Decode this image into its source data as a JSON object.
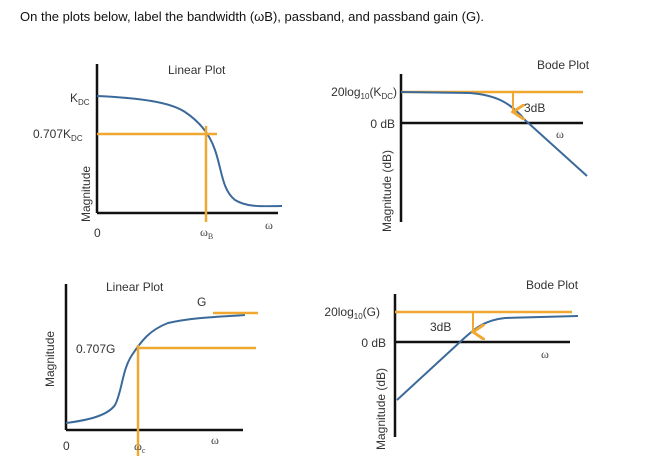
{
  "instruction": "On the plots below, label the bandwidth (ωB), passband, and passband gain (G).",
  "colors": {
    "axis": "#111111",
    "curve": "#3b6a9a",
    "marker": "#f0a830",
    "text": "#333333"
  },
  "plots": [
    {
      "title": "Linear Plot",
      "ylabel": "Magnitude",
      "origin": "0",
      "x_label": "ω",
      "level_label_main": "K",
      "level_label_sub": "DC",
      "marker_label_main": "0.707K",
      "marker_label_sub": "DC",
      "freq_main": "ω",
      "freq_sub": "B",
      "type": "low-pass linear"
    },
    {
      "title": "Bode Plot",
      "ylabel": "Magnitude (dB)",
      "x_label": "ω",
      "level_a": "20log",
      "level_sub": "10",
      "level_b": "(K",
      "level_sub2": "DC",
      "level_c": ")",
      "zero_label": "0 dB",
      "drop_label": "3dB",
      "type": "low-pass bode"
    },
    {
      "title": "Linear Plot",
      "ylabel": "Magnitude",
      "origin": "0",
      "x_label": "ω",
      "level_label": "G",
      "marker_label": "0.707G",
      "freq_main": "ω",
      "freq_sub": "c",
      "type": "high-pass linear"
    },
    {
      "title": "Bode Plot",
      "ylabel": "Magnitude (dB)",
      "x_label": "ω",
      "level_a": "20log",
      "level_sub": "10",
      "level_c": "(G)",
      "zero_label": "0 dB",
      "drop_label": "3dB",
      "type": "high-pass bode"
    }
  ]
}
